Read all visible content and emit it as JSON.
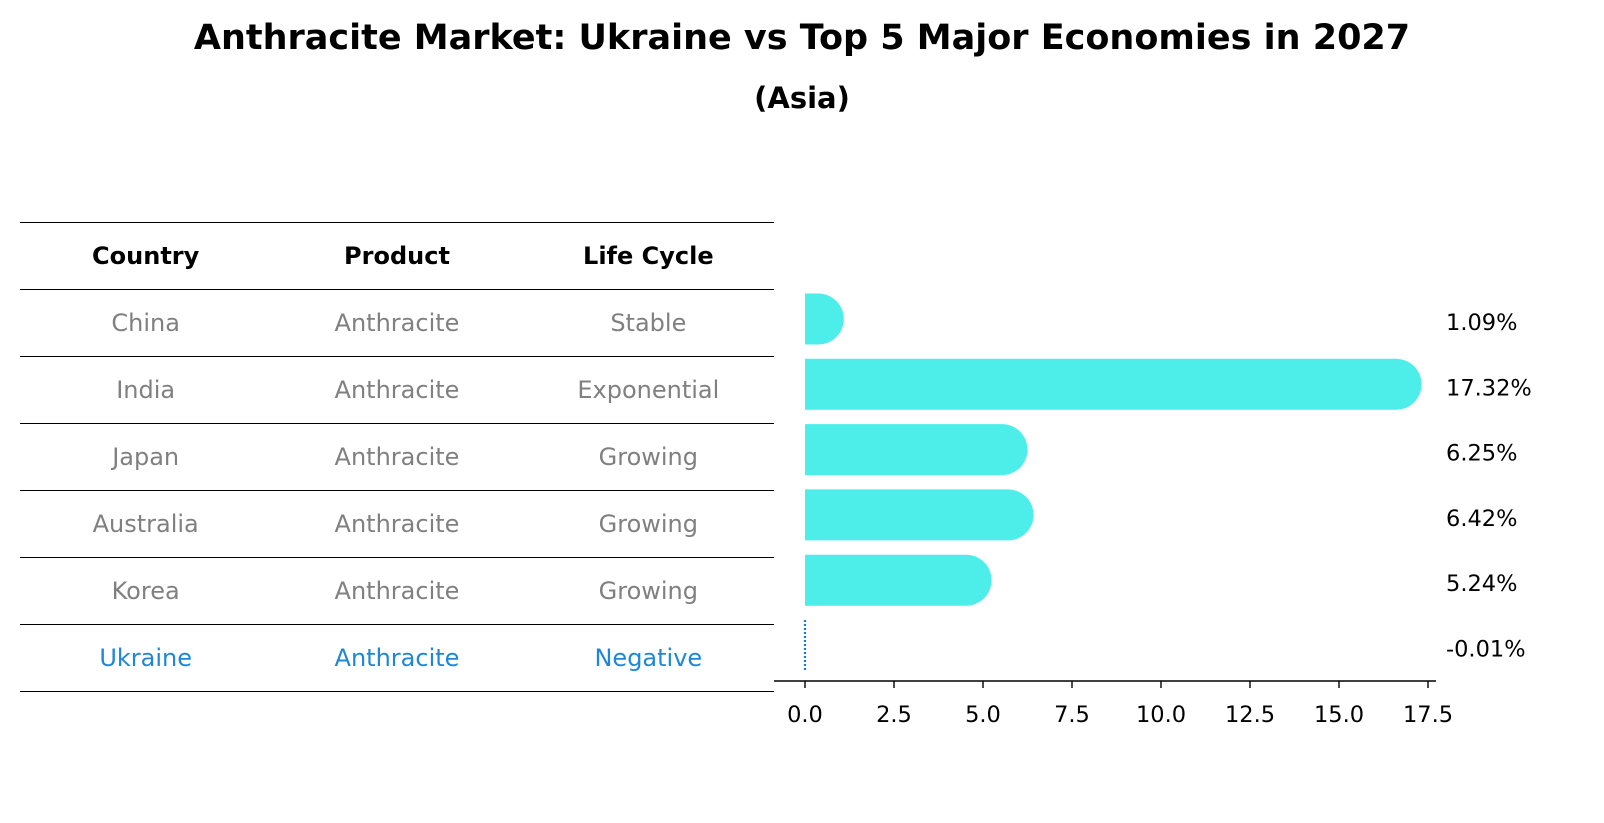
{
  "title": "Anthracite Market: Ukraine vs Top 5 Major Economies in 2027",
  "subtitle": "(Asia)",
  "table": {
    "headers": [
      "Country",
      "Product",
      "Life Cycle"
    ],
    "rows": [
      {
        "country": "China",
        "product": "Anthracite",
        "life_cycle": "Stable",
        "highlight": false
      },
      {
        "country": "India",
        "product": "Anthracite",
        "life_cycle": "Exponential",
        "highlight": false
      },
      {
        "country": "Japan",
        "product": "Anthracite",
        "life_cycle": "Growing",
        "highlight": false
      },
      {
        "country": "Australia",
        "product": "Anthracite",
        "life_cycle": "Growing",
        "highlight": false
      },
      {
        "country": "Korea",
        "product": "Anthracite",
        "life_cycle": "Growing",
        "highlight": false
      },
      {
        "country": "Ukraine",
        "product": "Anthracite",
        "life_cycle": "Negative",
        "highlight": true
      }
    ]
  },
  "chart_data": {
    "type": "bar",
    "orientation": "horizontal",
    "categories": [
      "China",
      "India",
      "Japan",
      "Australia",
      "Korea",
      "Ukraine"
    ],
    "values": [
      1.09,
      17.32,
      6.25,
      6.42,
      5.24,
      -0.01
    ],
    "data_labels": [
      "1.09%",
      "17.32%",
      "6.25%",
      "6.42%",
      "5.24%",
      "-0.01%"
    ],
    "xlim": [
      -0.9,
      18.2
    ],
    "xticks": [
      0.0,
      2.5,
      5.0,
      7.5,
      10.0,
      12.5,
      15.0,
      17.5
    ],
    "xtick_labels": [
      "0.0",
      "2.5",
      "5.0",
      "7.5",
      "10.0",
      "12.5",
      "15.0",
      "17.5"
    ],
    "xlabel": "",
    "ylabel": "",
    "grid": false,
    "colors": {
      "bar": "#4deeea",
      "negative": "#1f77d4",
      "axis": "#000000"
    }
  }
}
